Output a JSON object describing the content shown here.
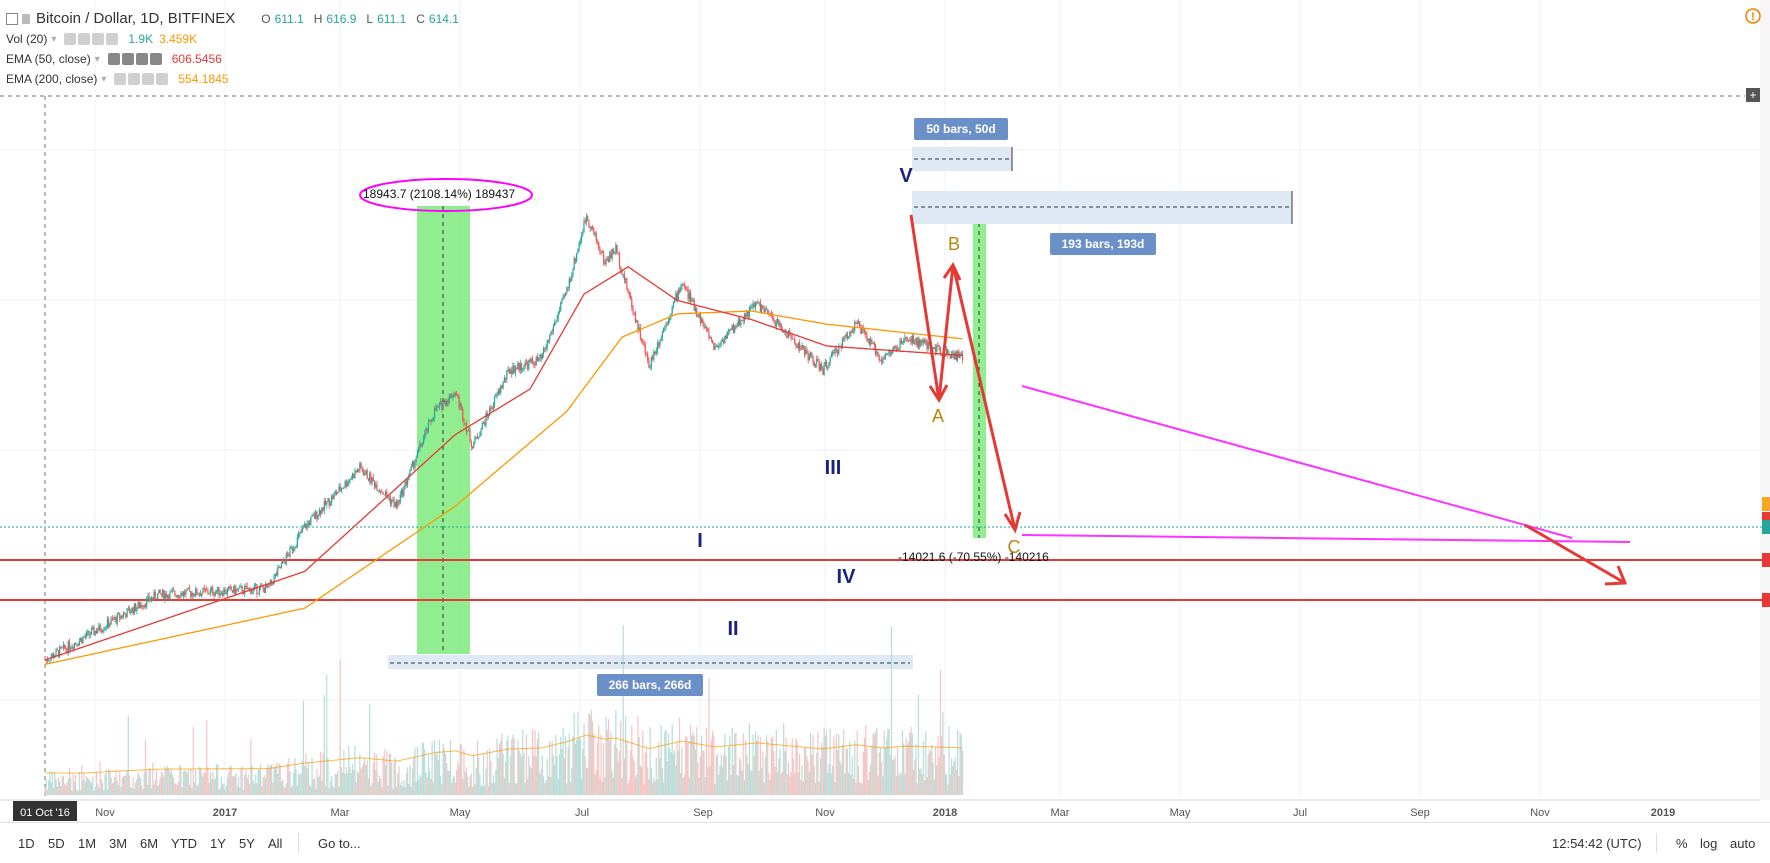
{
  "header": {
    "symbol_title": "Bitcoin / Dollar, 1D, BITFINEX",
    "ohlc": [
      {
        "key": "O",
        "value": "611.1"
      },
      {
        "key": "H",
        "value": "616.9"
      },
      {
        "key": "L",
        "value": "611.1"
      },
      {
        "key": "C",
        "value": "614.1"
      }
    ]
  },
  "indicators": [
    {
      "label": "Vol (20)",
      "values": [
        "1.9K",
        "3.459K"
      ],
      "colors": [
        "#26a69a",
        "#ff9800"
      ]
    },
    {
      "label": "EMA (50, close)",
      "values": [
        "606.5456"
      ],
      "colors": [
        "#e53935"
      ]
    },
    {
      "label": "EMA (200, close)",
      "values": [
        "554.1845"
      ],
      "colors": [
        "#ff9800"
      ]
    }
  ],
  "chart_data": {
    "type": "line",
    "title": "Bitcoin / Dollar, 1D, BITFINEX",
    "x_tick_labels": [
      "01 Oct '16",
      "Nov",
      "2017",
      "Mar",
      "May",
      "Jul",
      "Sep",
      "Nov",
      "2018",
      "Mar",
      "May",
      "Jul",
      "Sep",
      "Nov",
      "2019"
    ],
    "series": [
      {
        "name": "BTCUSD close (approx.)",
        "color": "#26a69a",
        "x": [
          "2016-10-01",
          "2017-01-01",
          "2017-04-01",
          "2017-05-01",
          "2017-06-15",
          "2017-07-15",
          "2017-08-15",
          "2017-09-01",
          "2017-09-15",
          "2017-10-15",
          "2017-11-10",
          "2017-12-01",
          "2017-12-17",
          "2018-01-01",
          "2018-01-10",
          "2018-02-06",
          "2018-03-05",
          "2018-04-01",
          "2018-05-05",
          "2018-06-28",
          "2018-07-25",
          "2018-08-15",
          "2018-09-05",
          "2018-10-20"
        ],
        "values": [
          600,
          1000,
          1050,
          1700,
          2700,
          2000,
          4200,
          4900,
          3200,
          5800,
          6300,
          10800,
          19500,
          13500,
          15000,
          6000,
          11500,
          6900,
          9800,
          5800,
          8400,
          6300,
          7400,
          6400
        ]
      },
      {
        "name": "EMA (50, close)",
        "color": "#e53935",
        "x": [
          "2016-10-01",
          "2017-05-01",
          "2017-09-01",
          "2017-11-01",
          "2017-12-15",
          "2018-01-20",
          "2018-03-01",
          "2018-05-01",
          "2018-07-01",
          "2018-10-20"
        ],
        "values": [
          600,
          1200,
          3500,
          5000,
          10500,
          13000,
          10000,
          8600,
          7000,
          6500
        ]
      },
      {
        "name": "EMA (200, close)",
        "color": "#ff9800",
        "x": [
          "2016-10-01",
          "2017-05-01",
          "2017-09-01",
          "2017-12-01",
          "2018-01-15",
          "2018-03-01",
          "2018-05-01",
          "2018-07-01",
          "2018-10-20"
        ],
        "values": [
          580,
          900,
          2000,
          4200,
          7500,
          9000,
          9200,
          8300,
          7400
        ]
      }
    ],
    "annotations": {
      "wave_labels": [
        "I",
        "II",
        "III",
        "IV",
        "V",
        "A",
        "B",
        "C"
      ],
      "measure_top": "18943.7 (2108.14%) 189437",
      "measure_bottom": "-14021.6 (-70.55%) -140216",
      "bars_boxes": [
        "50 bars, 50d",
        "193 bars, 193d",
        "266 bars, 266d"
      ]
    },
    "grid": true,
    "legend": "top-left"
  },
  "bottom_toolbar": {
    "ranges": [
      "1D",
      "5D",
      "1M",
      "3M",
      "6M",
      "YTD",
      "1Y",
      "5Y",
      "All"
    ],
    "goto": "Go to...",
    "clock": "12:54:42 (UTC)",
    "scale_options": [
      "%",
      "log",
      "auto"
    ]
  }
}
